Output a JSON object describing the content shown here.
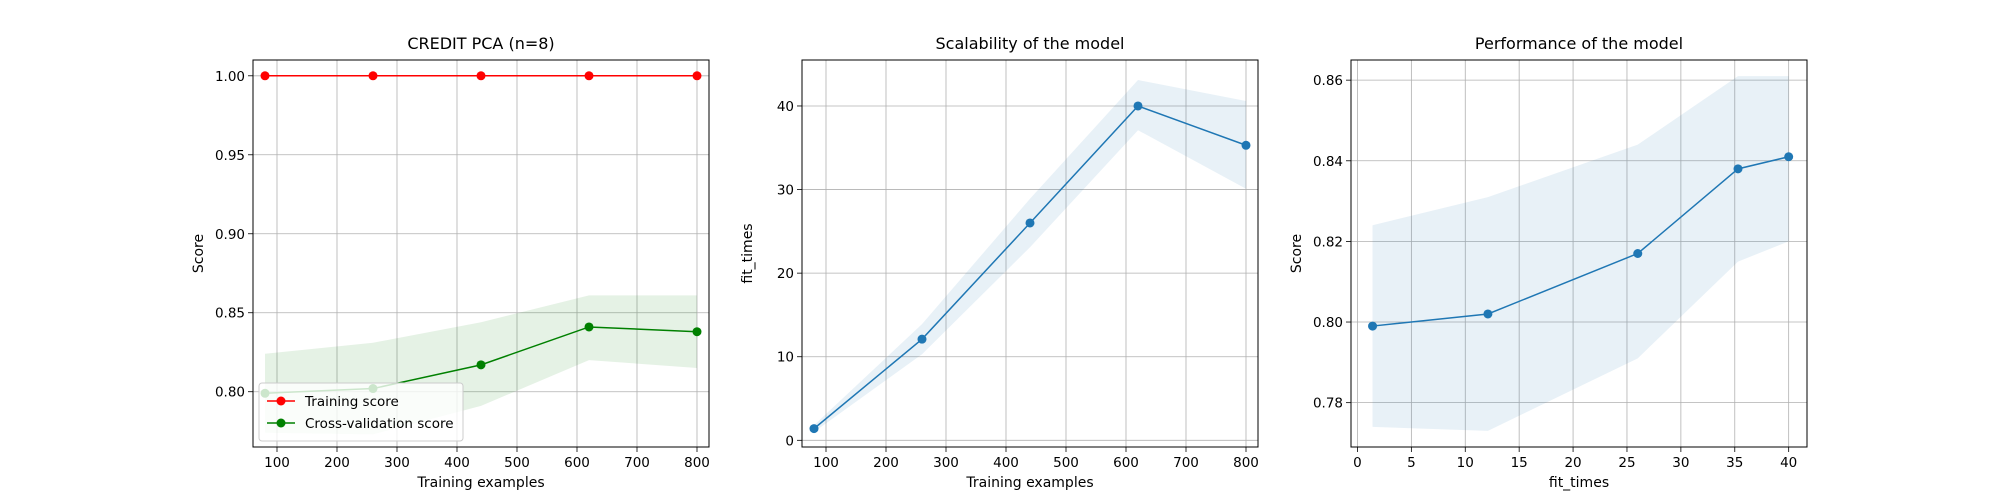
{
  "chart_data": [
    {
      "type": "line",
      "title": "CREDIT PCA (n=8)",
      "xlabel": "Training examples",
      "ylabel": "Score",
      "xlim": [
        60,
        820
      ],
      "ylim": [
        0.765,
        1.01
      ],
      "xticks": [
        100,
        200,
        300,
        400,
        500,
        600,
        700,
        800
      ],
      "yticks": [
        0.8,
        0.85,
        0.9,
        0.95,
        1.0
      ],
      "ytick_decimals": 2,
      "grid": true,
      "legend": "lower-left",
      "series": [
        {
          "name": "Training score",
          "color": "#ff0000",
          "x": [
            80,
            260,
            440,
            620,
            800
          ],
          "values": [
            1.0,
            1.0,
            1.0,
            1.0,
            1.0
          ],
          "band_lower": [
            1.0,
            1.0,
            1.0,
            1.0,
            1.0
          ],
          "band_upper": [
            1.0,
            1.0,
            1.0,
            1.0,
            1.0
          ]
        },
        {
          "name": "Cross-validation score",
          "color": "#008000",
          "x": [
            80,
            260,
            440,
            620,
            800
          ],
          "values": [
            0.799,
            0.802,
            0.817,
            0.841,
            0.838
          ],
          "band_lower": [
            0.774,
            0.773,
            0.791,
            0.82,
            0.815
          ],
          "band_upper": [
            0.824,
            0.831,
            0.844,
            0.861,
            0.861
          ]
        }
      ]
    },
    {
      "type": "line",
      "title": "Scalability of the model",
      "xlabel": "Training examples",
      "ylabel": "fit_times",
      "xlim": [
        60,
        820
      ],
      "ylim": [
        -0.8,
        45.5
      ],
      "xticks": [
        100,
        200,
        300,
        400,
        500,
        600,
        700,
        800
      ],
      "yticks": [
        0,
        10,
        20,
        30,
        40
      ],
      "ytick_decimals": 0,
      "grid": true,
      "series": [
        {
          "name": "",
          "color": "#1f77b4",
          "x": [
            80,
            260,
            440,
            620,
            800
          ],
          "values": [
            1.4,
            12.1,
            26.0,
            40.0,
            35.3
          ],
          "band_lower": [
            1.0,
            10.3,
            23.1,
            37.1,
            30.1
          ],
          "band_upper": [
            1.8,
            13.9,
            28.9,
            43.1,
            40.6
          ]
        }
      ]
    },
    {
      "type": "line",
      "title": "Performance of the model",
      "xlabel": "fit_times",
      "ylabel": "Score",
      "xlim": [
        -0.6,
        41.7
      ],
      "ylim": [
        0.769,
        0.865
      ],
      "xticks": [
        0,
        5,
        10,
        15,
        20,
        25,
        30,
        35,
        40
      ],
      "yticks": [
        0.78,
        0.8,
        0.82,
        0.84,
        0.86
      ],
      "ytick_decimals": 2,
      "grid": true,
      "series": [
        {
          "name": "",
          "color": "#1f77b4",
          "x": [
            1.4,
            12.1,
            26.0,
            35.3,
            40.0
          ],
          "values": [
            0.799,
            0.802,
            0.817,
            0.838,
            0.841
          ],
          "band_lower": [
            0.774,
            0.773,
            0.791,
            0.815,
            0.82
          ],
          "band_upper": [
            0.824,
            0.831,
            0.844,
            0.861,
            0.861
          ]
        }
      ]
    }
  ]
}
